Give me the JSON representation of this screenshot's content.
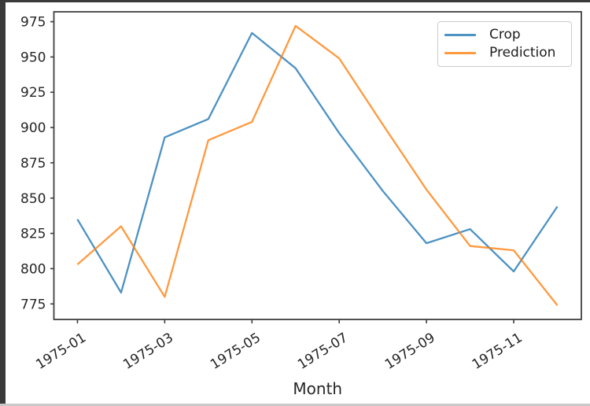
{
  "window": {
    "background": "#ffffff",
    "frame_color": "#3a3a3a"
  },
  "chart_data": {
    "type": "line",
    "title": "",
    "xlabel": "Month",
    "ylabel": "",
    "x": [
      "1975-01",
      "1975-02",
      "1975-03",
      "1975-04",
      "1975-05",
      "1975-06",
      "1975-07",
      "1975-08",
      "1975-09",
      "1975-10",
      "1975-11",
      "1975-12"
    ],
    "series": [
      {
        "name": "Crop",
        "color": "#1f77b4",
        "values": [
          835,
          783,
          893,
          906,
          967,
          942,
          896,
          855,
          818,
          828,
          798,
          844
        ]
      },
      {
        "name": "Prediction",
        "color": "#ff7f0e",
        "values": [
          803,
          830,
          780,
          891,
          904,
          972,
          949,
          902,
          856,
          816,
          813,
          774
        ]
      }
    ],
    "line_alpha": 0.8,
    "line_width": 2.3,
    "ylim": [
      764,
      982
    ],
    "x_index_range": [
      -0.54,
      11.55
    ],
    "yticks": [
      775,
      800,
      825,
      850,
      875,
      900,
      925,
      950,
      975
    ],
    "ytick_labels": [
      "775",
      "800",
      "825",
      "850",
      "875",
      "900",
      "925",
      "950",
      "975"
    ],
    "xtick_indices": [
      0,
      2,
      4,
      6,
      8,
      10
    ],
    "xtick_labels": [
      "1975-01",
      "1975-03",
      "1975-05",
      "1975-07",
      "1975-09",
      "1975-11"
    ],
    "xtick_rotation_deg": 32,
    "grid": false,
    "legend_position": "upper right",
    "axis_color": "#3f3f3f",
    "tick_label_color": "#262626"
  },
  "legend": {
    "items": [
      {
        "label": "Crop"
      },
      {
        "label": "Prediction"
      }
    ]
  }
}
